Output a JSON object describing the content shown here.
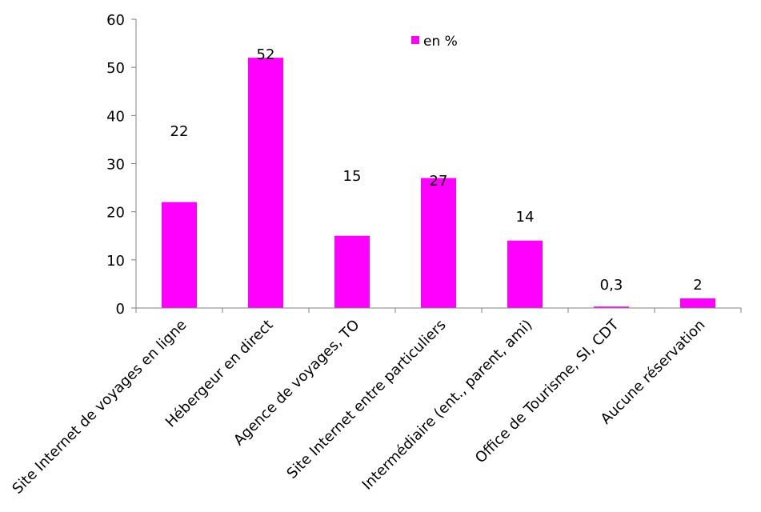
{
  "chart_data": {
    "type": "bar",
    "categories": [
      "Site Internet de voyages en ligne",
      "Hébergeur en direct",
      "Agence de voyages, TO",
      "Site Internet entre particuliers",
      "Intermédiaire (ent., parent, ami)",
      "Office de Tourisme, SI, CDT",
      "Aucune réservation"
    ],
    "series": [
      {
        "name": "en %",
        "values": [
          22,
          52,
          15,
          27,
          14,
          0.3,
          2
        ],
        "data_labels": [
          "22",
          "52",
          "15",
          "27",
          "14",
          "0,3",
          "2"
        ],
        "color": "#FF00FF"
      }
    ],
    "title": "",
    "xlabel": "",
    "ylabel": "",
    "ylim": [
      0,
      60
    ],
    "yticks": [
      0,
      10,
      20,
      30,
      40,
      50,
      60
    ],
    "ytick_labels": [
      "0",
      "10",
      "20",
      "30",
      "40",
      "50",
      "60"
    ],
    "grid": false,
    "legend_position": "top-right",
    "axis_color": "#808080"
  }
}
